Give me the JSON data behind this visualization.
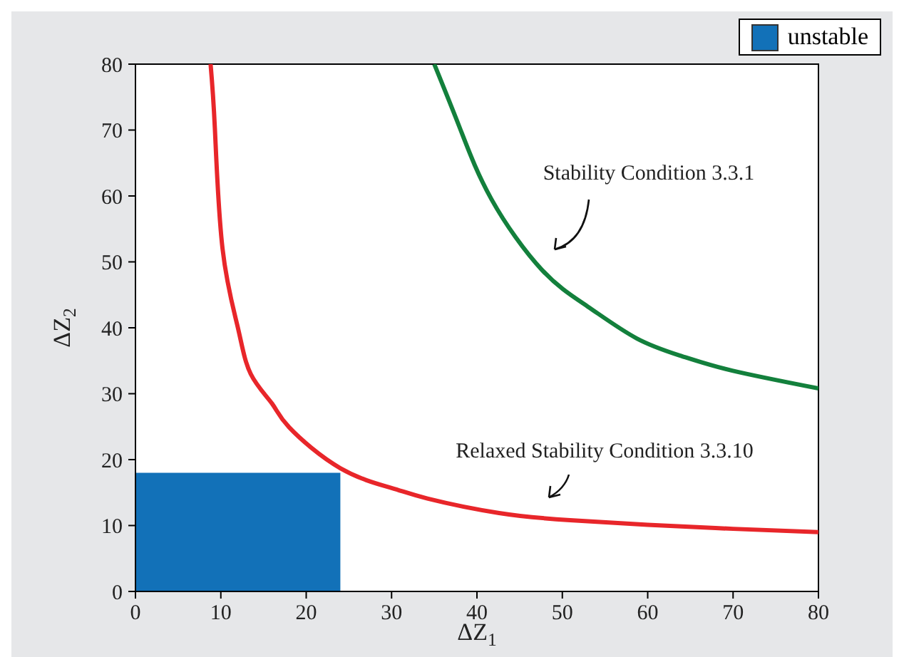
{
  "chart_data": {
    "type": "line",
    "xlabel": "ΔZ$_{1}$",
    "ylabel": "ΔZ$_{2}$",
    "xlim": [
      0,
      80
    ],
    "ylim": [
      0,
      80
    ],
    "xticks": [
      0,
      10,
      20,
      30,
      40,
      50,
      60,
      70,
      80
    ],
    "yticks": [
      0,
      10,
      20,
      30,
      40,
      50,
      60,
      70,
      80
    ],
    "legend": "top right",
    "series": [
      {
        "name": "unstable",
        "type": "area",
        "color": "#1271b8",
        "x": [
          0,
          24
        ],
        "values": [
          18,
          18
        ]
      },
      {
        "color": "#e8262a",
        "x": [
          8.8,
          9.3,
          10.2,
          12,
          13.5,
          16,
          18,
          24,
          30,
          34.2,
          42.6,
          50.9,
          60,
          70,
          80
        ],
        "values": [
          80,
          70.3,
          52,
          40,
          33,
          28.5,
          24.9,
          18.7,
          15.7,
          14.1,
          11.9,
          10.8,
          10.1,
          9.5,
          9
        ]
      },
      {
        "color": "#13803c",
        "x": [
          35,
          38,
          41.7,
          47.6,
          53,
          58.7,
          64,
          69.9,
          80
        ],
        "values": [
          80,
          70.3,
          59.5,
          48.8,
          43.2,
          38.4,
          35.7,
          33.5,
          30.8
        ]
      }
    ],
    "annotations": [
      "Stability Condition 3.3.1",
      "Relaxed Stability Condition 3.3.10"
    ]
  }
}
